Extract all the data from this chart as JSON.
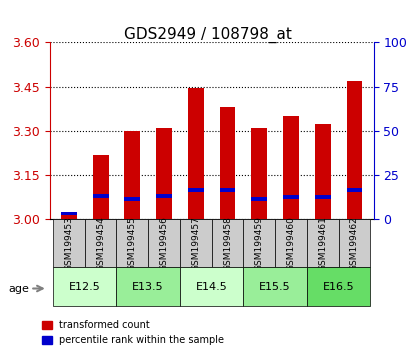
{
  "title": "GDS2949 / 108798_at",
  "samples": [
    "GSM199453",
    "GSM199454",
    "GSM199455",
    "GSM199456",
    "GSM199457",
    "GSM199458",
    "GSM199459",
    "GSM199460",
    "GSM199461",
    "GSM199462"
  ],
  "red_values": [
    3.02,
    3.22,
    3.3,
    3.31,
    3.445,
    3.38,
    3.31,
    3.35,
    3.325,
    3.47
  ],
  "blue_values": [
    3.02,
    3.08,
    3.07,
    3.08,
    3.1,
    3.1,
    3.07,
    3.075,
    3.075,
    3.1
  ],
  "ylim_left": [
    3.0,
    3.6
  ],
  "ylim_right": [
    0,
    100
  ],
  "yticks_left": [
    3.0,
    3.15,
    3.3,
    3.45,
    3.6
  ],
  "yticks_right": [
    0,
    25,
    50,
    75,
    100
  ],
  "bar_color": "#cc0000",
  "blue_color": "#0000cc",
  "bar_width": 0.5,
  "age_groups": [
    {
      "label": "E12.5",
      "samples": [
        "GSM199453",
        "GSM199454"
      ],
      "color": "#ccffcc"
    },
    {
      "label": "E13.5",
      "samples": [
        "GSM199455",
        "GSM199456"
      ],
      "color": "#99ee99"
    },
    {
      "label": "E14.5",
      "samples": [
        "GSM199457",
        "GSM199458"
      ],
      "color": "#ccffcc"
    },
    {
      "label": "E15.5",
      "samples": [
        "GSM199459",
        "GSM199460"
      ],
      "color": "#99ee99"
    },
    {
      "label": "E16.5",
      "samples": [
        "GSM199461",
        "GSM199462"
      ],
      "color": "#66dd66"
    }
  ],
  "legend_red": "transformed count",
  "legend_blue": "percentile rank within the sample",
  "background_color": "#ffffff",
  "sample_box_color": "#cccccc",
  "title_fontsize": 11,
  "tick_fontsize": 9
}
